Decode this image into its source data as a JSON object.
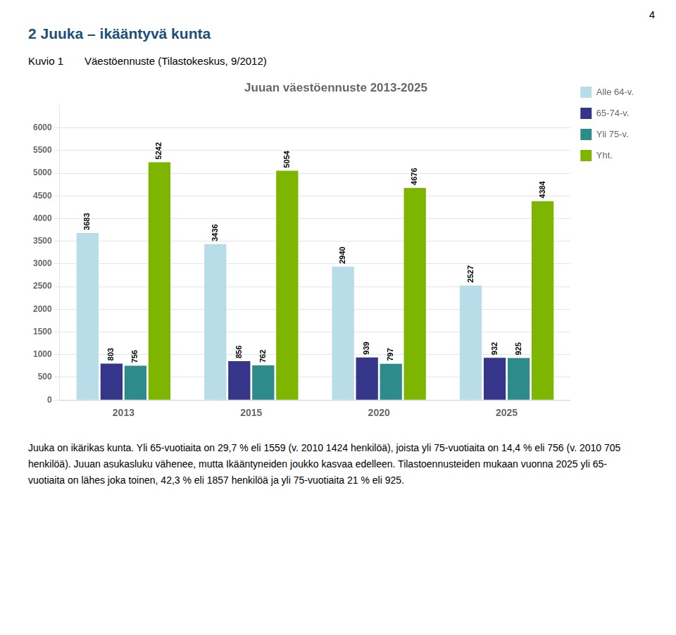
{
  "page_number": "4",
  "page_title": "2 Juuka – ikääntyvä kunta",
  "figure_label": "Kuvio 1",
  "subtitle": "Väestöennuste (Tilastokeskus, 9/2012)",
  "body_text": "Juuka on ikärikas kunta. Yli 65-vuotiaita on 29,7 % eli 1559 (v. 2010 1424 henkilöä), joista yli 75-vuotiaita on 14,4 % eli 756 (v. 2010 705 henkilöä). Juuan asukasluku vähenee, mutta Ikääntyneiden joukko kasvaa edelleen. Tilastoennusteiden mukaan vuonna 2025 yli 65-vuotiaita on lähes joka toinen, 42,3 % eli 1857 henkilöä ja yli 75-vuotiaita 21 % eli 925.",
  "chart_data": {
    "type": "bar",
    "title": "Juuan väestöennuste 2013-2025",
    "categories": [
      "2013",
      "2015",
      "2020",
      "2025"
    ],
    "series": [
      {
        "name": "Alle 64-v.",
        "color": "#b8dce8",
        "values": [
          3683,
          3436,
          2940,
          2527
        ]
      },
      {
        "name": "65-74-v.",
        "color": "#35368a",
        "values": [
          803,
          856,
          939,
          932
        ]
      },
      {
        "name": "Yli 75-v.",
        "color": "#2e8b8b",
        "values": [
          756,
          762,
          797,
          925
        ]
      },
      {
        "name": "Yht.",
        "color": "#7eb500",
        "values": [
          5242,
          5054,
          4676,
          4384
        ]
      }
    ],
    "ylim": [
      0,
      6500
    ],
    "yticks": [
      0,
      500,
      1000,
      1500,
      2000,
      2500,
      3000,
      3500,
      4000,
      4500,
      5000,
      5500,
      6000
    ],
    "grid": true,
    "legend": "right",
    "data_labels": true
  }
}
